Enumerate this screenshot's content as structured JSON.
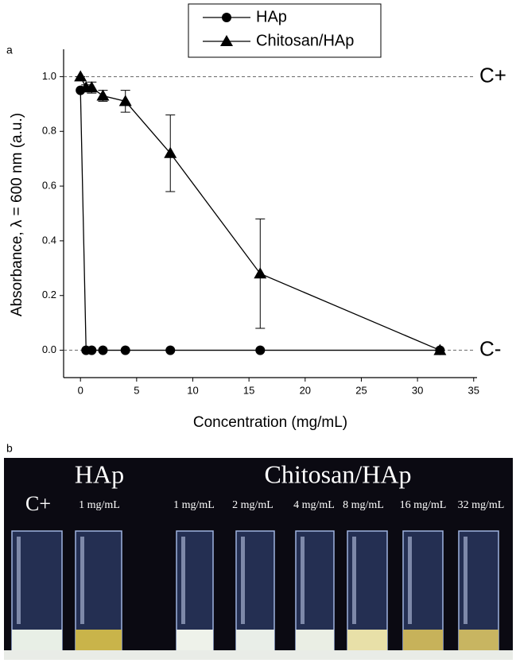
{
  "chart_data": {
    "type": "line",
    "x_label": "Concentration (mg/mL)",
    "y_label": "Absorbance, λ = 600 nm (a.u.)",
    "x": [
      0,
      0.5,
      1,
      2,
      4,
      8,
      16,
      32
    ],
    "series": [
      {
        "name": "HAp",
        "color": "#000000",
        "marker": "circle",
        "values": [
          0.95,
          0,
          0,
          0,
          0,
          0,
          0,
          0
        ]
      },
      {
        "name": "Chitosan/HAp",
        "color": "#000000",
        "marker": "triangle",
        "values": [
          1.0,
          0.96,
          0.96,
          0.93,
          0.91,
          0.72,
          0.28,
          0.0
        ],
        "errors": [
          0,
          0.01,
          0.02,
          0.02,
          0.04,
          0.14,
          0.2,
          0
        ]
      }
    ],
    "reference_lines": [
      {
        "value": 1.0,
        "label": "C+"
      },
      {
        "value": 0,
        "label": "C-"
      }
    ],
    "xlim": [
      -1.5,
      35.3
    ],
    "xticks": [
      0,
      5,
      10,
      15,
      20,
      25,
      30,
      35
    ],
    "ylim": [
      -0.1,
      1.1
    ],
    "yticks": [
      {
        "value": 0,
        "label": "0.0"
      },
      0.2,
      0.4,
      0.6,
      0.8,
      {
        "value": 1,
        "label": "1.0"
      }
    ],
    "legend": "top"
  },
  "panel_labels": [
    "a",
    "b"
  ],
  "photo": {
    "group_titles": [
      "HAp",
      "Chitosan/HAp"
    ],
    "tube_labels": [
      "C+",
      "1 mg/mL",
      "1 mg/mL",
      "2 mg/mL",
      "4 mg/mL",
      "8 mg/mL",
      "16 mg/mL",
      "32 mg/mL"
    ]
  }
}
